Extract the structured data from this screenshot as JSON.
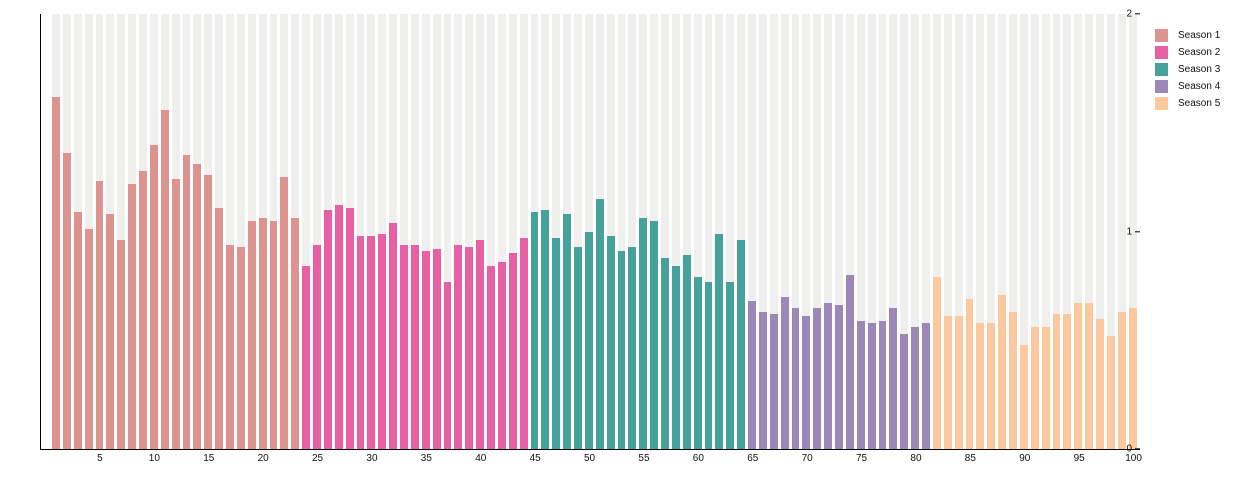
{
  "chart_data": {
    "type": "bar",
    "title": "",
    "xlabel": "",
    "ylabel": "",
    "ylim": [
      0,
      2
    ],
    "yticks": [
      0,
      1,
      2
    ],
    "xticks": [
      5,
      10,
      15,
      20,
      25,
      30,
      35,
      40,
      45,
      50,
      55,
      60,
      65,
      70,
      75,
      80,
      85,
      90,
      95,
      100
    ],
    "x_range": [
      1,
      100
    ],
    "grid": "off",
    "background_track_color": "#efefee",
    "axis_color": "#000000",
    "tick_label_color": "#111111",
    "legend_position": "top-right",
    "series": [
      {
        "name": "Season 1",
        "color": "#dd938f",
        "start": 1,
        "values": [
          1.62,
          1.36,
          1.09,
          1.01,
          1.23,
          1.08,
          0.96,
          1.22,
          1.28,
          1.4,
          1.56,
          1.24,
          1.35,
          1.31,
          1.26,
          1.11,
          0.94,
          0.93,
          1.05,
          1.06,
          1.05,
          1.25,
          1.06
        ]
      },
      {
        "name": "Season 2",
        "color": "#e760a4",
        "start": 24,
        "values": [
          0.84,
          0.94,
          1.1,
          1.12,
          1.11,
          0.98,
          0.98,
          0.99,
          1.04,
          0.94,
          0.94,
          0.91,
          0.92,
          0.77,
          0.94,
          0.93,
          0.96,
          0.84,
          0.86,
          0.9,
          0.97
        ]
      },
      {
        "name": "Season 3",
        "color": "#45a29a",
        "start": 45,
        "values": [
          1.09,
          1.1,
          0.97,
          1.08,
          0.93,
          1.0,
          1.15,
          0.98,
          0.91,
          0.93,
          1.06,
          1.05,
          0.88,
          0.84,
          0.89,
          0.79,
          0.77,
          0.99,
          0.77,
          0.96
        ]
      },
      {
        "name": "Season 4",
        "color": "#9b87b8",
        "start": 65,
        "values": [
          0.68,
          0.63,
          0.62,
          0.7,
          0.65,
          0.61,
          0.65,
          0.67,
          0.66,
          0.8,
          0.59,
          0.58,
          0.59,
          0.65,
          0.53,
          0.56,
          0.58
        ]
      },
      {
        "name": "Season 5",
        "color": "#fcc99e",
        "start": 82,
        "values": [
          0.79,
          0.61,
          0.61,
          0.69,
          0.58,
          0.58,
          0.71,
          0.63,
          0.48,
          0.56,
          0.56,
          0.62,
          0.62,
          0.67,
          0.67,
          0.6,
          0.52,
          0.63,
          0.65
        ]
      }
    ],
    "legend_entries": [
      "Season 1",
      "Season 2",
      "Season 3",
      "Season 4",
      "Season 5"
    ]
  }
}
